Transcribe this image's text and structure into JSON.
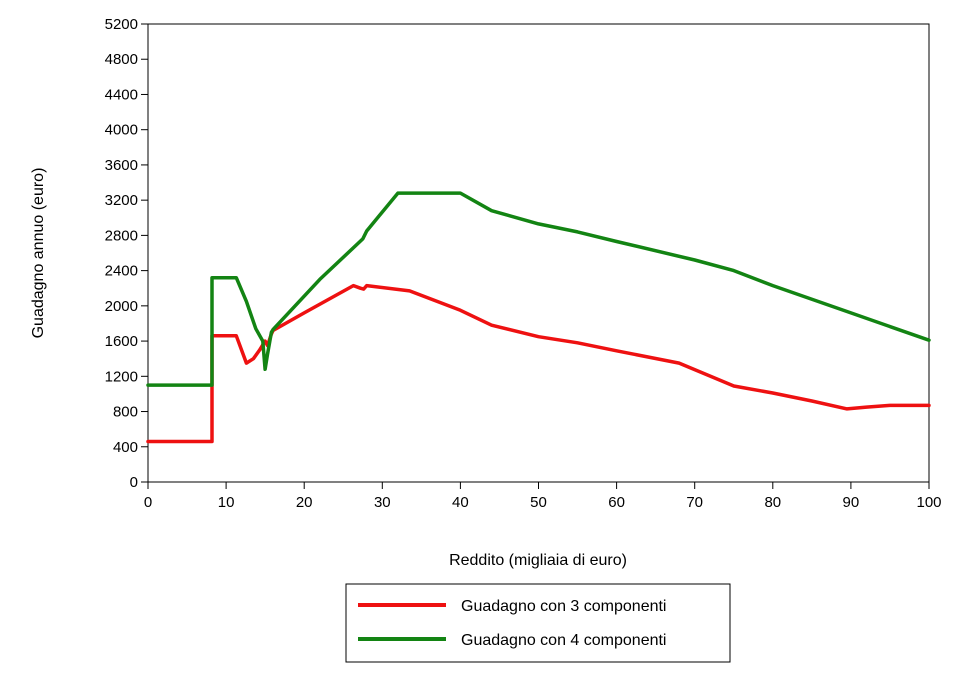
{
  "chart_data": {
    "type": "line",
    "xlabel": "Reddito (migliaia di euro)",
    "ylabel": "Guadagno annuo (euro)",
    "xlim": [
      0,
      100
    ],
    "ylim": [
      0,
      5200
    ],
    "xticks": [
      0,
      10,
      20,
      30,
      40,
      50,
      60,
      70,
      80,
      90,
      100
    ],
    "yticks": [
      0,
      400,
      800,
      1200,
      1600,
      2000,
      2400,
      2800,
      3200,
      3600,
      4000,
      4400,
      4800,
      5200
    ],
    "grid": false,
    "legend_position": "bottom-center",
    "series": [
      {
        "name": "Guadagno con 3 componenti",
        "color": "#ee1111",
        "x": [
          0,
          8.2,
          8.2,
          11.3,
          12.6,
          13.5,
          14.3,
          15.0,
          15.3,
          15.8,
          16.0,
          20,
          26.3,
          27.2,
          27.6,
          28.0,
          33.5,
          40,
          44,
          50,
          55,
          60,
          68,
          75,
          80,
          85,
          89.5,
          92,
          95,
          100
        ],
        "y": [
          460,
          460,
          1660,
          1660,
          1350,
          1400,
          1500,
          1600,
          1550,
          1680,
          1720,
          1920,
          2230,
          2200,
          2190,
          2230,
          2170,
          1950,
          1780,
          1650,
          1580,
          1490,
          1350,
          1090,
          1010,
          920,
          830,
          850,
          870,
          870
        ]
      },
      {
        "name": "Guadagno con 4 componenti",
        "color": "#138413",
        "x": [
          0,
          8.2,
          8.2,
          11.3,
          12.6,
          13.8,
          14.7,
          15.0,
          15.3,
          15.8,
          16.0,
          22,
          27.5,
          28.0,
          32,
          40,
          44,
          50,
          55,
          60,
          70,
          75,
          80,
          90,
          100
        ],
        "y": [
          1100,
          1100,
          2320,
          2320,
          2050,
          1740,
          1600,
          1280,
          1450,
          1700,
          1730,
          2300,
          2760,
          2850,
          3280,
          3280,
          3080,
          2930,
          2840,
          2730,
          2520,
          2400,
          2230,
          1920,
          1610
        ]
      }
    ]
  }
}
